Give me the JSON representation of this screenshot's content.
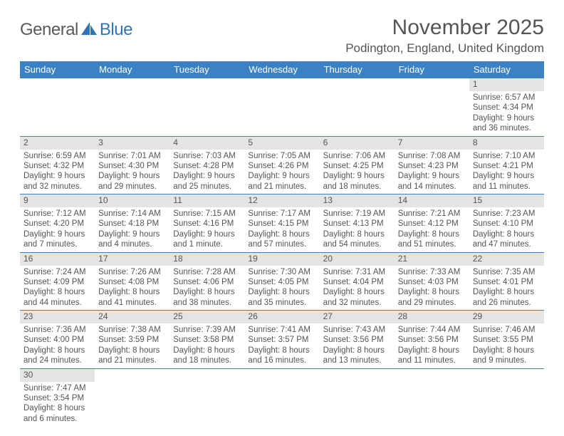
{
  "logo": {
    "word1": "General",
    "word2": "Blue",
    "text_color1": "#5a5a5a",
    "text_color2": "#2e75b6"
  },
  "title": "November 2025",
  "location": "Podington, England, United Kingdom",
  "colors": {
    "header_bg": "#3b82c4",
    "header_text": "#ffffff",
    "daynum_bg": "#e4e4e4",
    "border": "#3b82c4",
    "body_text": "#555555"
  },
  "fonts": {
    "title_size": 30,
    "location_size": 17,
    "dayname_size": 13,
    "cell_size": 11.5
  },
  "day_names": [
    "Sunday",
    "Monday",
    "Tuesday",
    "Wednesday",
    "Thursday",
    "Friday",
    "Saturday"
  ],
  "weeks": [
    [
      null,
      null,
      null,
      null,
      null,
      null,
      {
        "n": "1",
        "sr": "Sunrise: 6:57 AM",
        "ss": "Sunset: 4:34 PM",
        "dl": "Daylight: 9 hours and 36 minutes."
      }
    ],
    [
      {
        "n": "2",
        "sr": "Sunrise: 6:59 AM",
        "ss": "Sunset: 4:32 PM",
        "dl": "Daylight: 9 hours and 32 minutes."
      },
      {
        "n": "3",
        "sr": "Sunrise: 7:01 AM",
        "ss": "Sunset: 4:30 PM",
        "dl": "Daylight: 9 hours and 29 minutes."
      },
      {
        "n": "4",
        "sr": "Sunrise: 7:03 AM",
        "ss": "Sunset: 4:28 PM",
        "dl": "Daylight: 9 hours and 25 minutes."
      },
      {
        "n": "5",
        "sr": "Sunrise: 7:05 AM",
        "ss": "Sunset: 4:26 PM",
        "dl": "Daylight: 9 hours and 21 minutes."
      },
      {
        "n": "6",
        "sr": "Sunrise: 7:06 AM",
        "ss": "Sunset: 4:25 PM",
        "dl": "Daylight: 9 hours and 18 minutes."
      },
      {
        "n": "7",
        "sr": "Sunrise: 7:08 AM",
        "ss": "Sunset: 4:23 PM",
        "dl": "Daylight: 9 hours and 14 minutes."
      },
      {
        "n": "8",
        "sr": "Sunrise: 7:10 AM",
        "ss": "Sunset: 4:21 PM",
        "dl": "Daylight: 9 hours and 11 minutes."
      }
    ],
    [
      {
        "n": "9",
        "sr": "Sunrise: 7:12 AM",
        "ss": "Sunset: 4:20 PM",
        "dl": "Daylight: 9 hours and 7 minutes."
      },
      {
        "n": "10",
        "sr": "Sunrise: 7:14 AM",
        "ss": "Sunset: 4:18 PM",
        "dl": "Daylight: 9 hours and 4 minutes."
      },
      {
        "n": "11",
        "sr": "Sunrise: 7:15 AM",
        "ss": "Sunset: 4:16 PM",
        "dl": "Daylight: 9 hours and 1 minute."
      },
      {
        "n": "12",
        "sr": "Sunrise: 7:17 AM",
        "ss": "Sunset: 4:15 PM",
        "dl": "Daylight: 8 hours and 57 minutes."
      },
      {
        "n": "13",
        "sr": "Sunrise: 7:19 AM",
        "ss": "Sunset: 4:13 PM",
        "dl": "Daylight: 8 hours and 54 minutes."
      },
      {
        "n": "14",
        "sr": "Sunrise: 7:21 AM",
        "ss": "Sunset: 4:12 PM",
        "dl": "Daylight: 8 hours and 51 minutes."
      },
      {
        "n": "15",
        "sr": "Sunrise: 7:23 AM",
        "ss": "Sunset: 4:10 PM",
        "dl": "Daylight: 8 hours and 47 minutes."
      }
    ],
    [
      {
        "n": "16",
        "sr": "Sunrise: 7:24 AM",
        "ss": "Sunset: 4:09 PM",
        "dl": "Daylight: 8 hours and 44 minutes."
      },
      {
        "n": "17",
        "sr": "Sunrise: 7:26 AM",
        "ss": "Sunset: 4:08 PM",
        "dl": "Daylight: 8 hours and 41 minutes."
      },
      {
        "n": "18",
        "sr": "Sunrise: 7:28 AM",
        "ss": "Sunset: 4:06 PM",
        "dl": "Daylight: 8 hours and 38 minutes."
      },
      {
        "n": "19",
        "sr": "Sunrise: 7:30 AM",
        "ss": "Sunset: 4:05 PM",
        "dl": "Daylight: 8 hours and 35 minutes."
      },
      {
        "n": "20",
        "sr": "Sunrise: 7:31 AM",
        "ss": "Sunset: 4:04 PM",
        "dl": "Daylight: 8 hours and 32 minutes."
      },
      {
        "n": "21",
        "sr": "Sunrise: 7:33 AM",
        "ss": "Sunset: 4:03 PM",
        "dl": "Daylight: 8 hours and 29 minutes."
      },
      {
        "n": "22",
        "sr": "Sunrise: 7:35 AM",
        "ss": "Sunset: 4:01 PM",
        "dl": "Daylight: 8 hours and 26 minutes."
      }
    ],
    [
      {
        "n": "23",
        "sr": "Sunrise: 7:36 AM",
        "ss": "Sunset: 4:00 PM",
        "dl": "Daylight: 8 hours and 24 minutes."
      },
      {
        "n": "24",
        "sr": "Sunrise: 7:38 AM",
        "ss": "Sunset: 3:59 PM",
        "dl": "Daylight: 8 hours and 21 minutes."
      },
      {
        "n": "25",
        "sr": "Sunrise: 7:39 AM",
        "ss": "Sunset: 3:58 PM",
        "dl": "Daylight: 8 hours and 18 minutes."
      },
      {
        "n": "26",
        "sr": "Sunrise: 7:41 AM",
        "ss": "Sunset: 3:57 PM",
        "dl": "Daylight: 8 hours and 16 minutes."
      },
      {
        "n": "27",
        "sr": "Sunrise: 7:43 AM",
        "ss": "Sunset: 3:56 PM",
        "dl": "Daylight: 8 hours and 13 minutes."
      },
      {
        "n": "28",
        "sr": "Sunrise: 7:44 AM",
        "ss": "Sunset: 3:56 PM",
        "dl": "Daylight: 8 hours and 11 minutes."
      },
      {
        "n": "29",
        "sr": "Sunrise: 7:46 AM",
        "ss": "Sunset: 3:55 PM",
        "dl": "Daylight: 8 hours and 9 minutes."
      }
    ],
    [
      {
        "n": "30",
        "sr": "Sunrise: 7:47 AM",
        "ss": "Sunset: 3:54 PM",
        "dl": "Daylight: 8 hours and 6 minutes."
      },
      null,
      null,
      null,
      null,
      null,
      null
    ]
  ]
}
